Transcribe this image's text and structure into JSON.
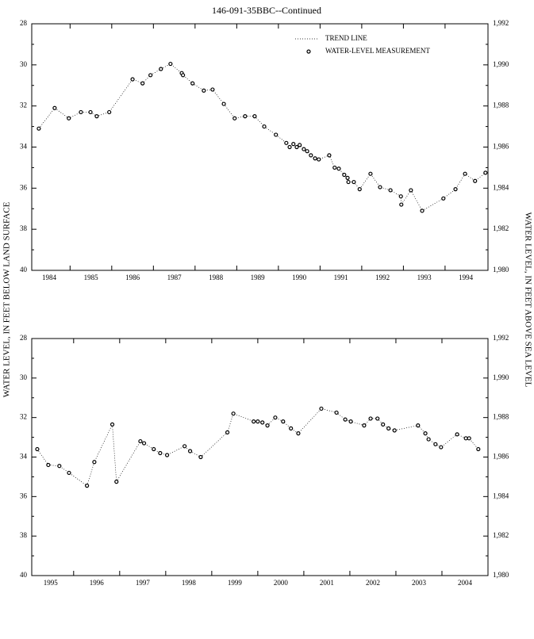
{
  "chart_data": [
    {
      "type": "line",
      "title": "146-091-35BBC--Continued",
      "ylabel": "WATER LEVEL, IN FEET BELOW LAND SURFACE",
      "y2label": "WATER LEVEL, IN FEET ABOVE SEA LEVEL",
      "trend_legend": "TREND LINE",
      "y_reversed": true,
      "xlim": [
        1984.08,
        1995.03
      ],
      "xticks": [
        {
          "value": 1984.5,
          "label": "1984"
        },
        {
          "value": 1985.5,
          "label": "1985"
        },
        {
          "value": 1986.5,
          "label": "1986"
        },
        {
          "value": 1987.5,
          "label": "1987"
        },
        {
          "value": 1988.5,
          "label": "1988"
        },
        {
          "value": 1989.5,
          "label": "1989"
        },
        {
          "value": 1990.5,
          "label": "1990"
        },
        {
          "value": 1991.5,
          "label": "1991"
        },
        {
          "value": 1992.5,
          "label": "1992"
        },
        {
          "value": 1993.5,
          "label": "1993"
        },
        {
          "value": 1994.5,
          "label": "1994"
        }
      ],
      "ylim": [
        28,
        40
      ],
      "yticks": [
        28,
        30,
        32,
        34,
        36,
        38,
        40
      ],
      "y2lim": [
        1992,
        1980
      ],
      "y2ticks": [
        {
          "value": 1992,
          "label": "1,992"
        },
        {
          "value": 1990,
          "label": "1,990"
        },
        {
          "value": 1988,
          "label": "1,988"
        },
        {
          "value": 1986,
          "label": "1,986"
        },
        {
          "value": 1984,
          "label": "1,984"
        },
        {
          "value": 1982,
          "label": "1,982"
        },
        {
          "value": 1980,
          "label": "1,980"
        }
      ],
      "series": [
        {
          "name": "WATER-LEVEL MEASUREMENT",
          "color": "#000000",
          "x": [
            1984.25,
            1984.63,
            1984.97,
            1985.26,
            1985.49,
            1985.64,
            1985.94,
            1986.5,
            1986.74,
            1986.93,
            1987.18,
            1987.41,
            1987.68,
            1987.71,
            1987.94,
            1988.21,
            1988.42,
            1988.69,
            1988.95,
            1989.2,
            1989.43,
            1989.66,
            1989.94,
            1990.19,
            1990.27,
            1990.36,
            1990.44,
            1990.51,
            1990.61,
            1990.69,
            1990.78,
            1990.88,
            1990.97,
            1991.22,
            1991.35,
            1991.45,
            1991.58,
            1991.66,
            1991.68,
            1991.81,
            1991.95,
            1992.21,
            1992.44,
            1992.69,
            1992.94,
            1992.95,
            1993.18,
            1993.45,
            1993.96,
            1994.25,
            1994.48,
            1994.72,
            1994.97
          ],
          "values": [
            33.1,
            32.1,
            32.6,
            32.3,
            32.3,
            32.5,
            32.3,
            30.7,
            30.9,
            30.5,
            30.2,
            29.95,
            30.4,
            30.5,
            30.9,
            31.25,
            31.2,
            31.9,
            32.6,
            32.5,
            32.5,
            33.0,
            33.4,
            33.8,
            34.0,
            33.85,
            34.0,
            33.9,
            34.1,
            34.2,
            34.4,
            34.55,
            34.6,
            34.4,
            35.0,
            35.05,
            35.35,
            35.5,
            35.7,
            35.7,
            36.05,
            35.3,
            35.95,
            36.1,
            36.4,
            36.8,
            36.1,
            37.1,
            36.5,
            36.05,
            35.3,
            35.65,
            35.25
          ]
        }
      ]
    },
    {
      "type": "line",
      "y_reversed": true,
      "xlim": [
        1995.09,
        2005.0
      ],
      "xticks": [
        {
          "value": 1995.5,
          "label": "1995"
        },
        {
          "value": 1996.5,
          "label": "1996"
        },
        {
          "value": 1997.5,
          "label": "1997"
        },
        {
          "value": 1998.5,
          "label": "1998"
        },
        {
          "value": 1999.5,
          "label": "1999"
        },
        {
          "value": 2000.5,
          "label": "2000"
        },
        {
          "value": 2001.5,
          "label": "2001"
        },
        {
          "value": 2002.5,
          "label": "2002"
        },
        {
          "value": 2003.5,
          "label": "2003"
        },
        {
          "value": 2004.5,
          "label": "2004"
        }
      ],
      "ylim": [
        28,
        40
      ],
      "yticks": [
        28,
        30,
        32,
        34,
        36,
        38,
        40
      ],
      "y2lim": [
        1992,
        1980
      ],
      "y2ticks": [
        {
          "value": 1992,
          "label": "1,992"
        },
        {
          "value": 1990,
          "label": "1,990"
        },
        {
          "value": 1988,
          "label": "1,988"
        },
        {
          "value": 1986,
          "label": "1,986"
        },
        {
          "value": 1984,
          "label": "1,984"
        },
        {
          "value": 1982,
          "label": "1,982"
        },
        {
          "value": 1980,
          "label": "1,980"
        }
      ],
      "series": [
        {
          "name": "WATER-LEVEL MEASUREMENT",
          "color": "#000000",
          "x": [
            1995.21,
            1995.45,
            1995.69,
            1995.9,
            1996.29,
            1996.45,
            1996.84,
            1996.93,
            1997.45,
            1997.53,
            1997.74,
            1997.88,
            1998.03,
            1998.41,
            1998.53,
            1998.76,
            1999.34,
            1999.47,
            1999.91,
            2000.0,
            2000.1,
            2000.21,
            2000.38,
            2000.55,
            2000.72,
            2000.88,
            2001.38,
            2001.71,
            2001.9,
            2002.02,
            2002.31,
            2002.45,
            2002.6,
            2002.72,
            2002.84,
            2002.97,
            2003.48,
            2003.64,
            2003.71,
            2003.86,
            2003.98,
            2004.33,
            2004.52,
            2004.59,
            2004.79
          ],
          "values": [
            33.6,
            34.4,
            34.45,
            34.8,
            35.45,
            34.25,
            32.35,
            35.25,
            33.2,
            33.3,
            33.6,
            33.8,
            33.9,
            33.45,
            33.7,
            34.0,
            32.75,
            31.8,
            32.2,
            32.2,
            32.25,
            32.4,
            32.0,
            32.2,
            32.55,
            32.8,
            31.55,
            31.75,
            32.1,
            32.2,
            32.4,
            32.05,
            32.05,
            32.35,
            32.55,
            32.65,
            32.4,
            32.8,
            33.1,
            33.35,
            33.5,
            32.85,
            33.05,
            33.05,
            33.6
          ]
        }
      ]
    }
  ]
}
